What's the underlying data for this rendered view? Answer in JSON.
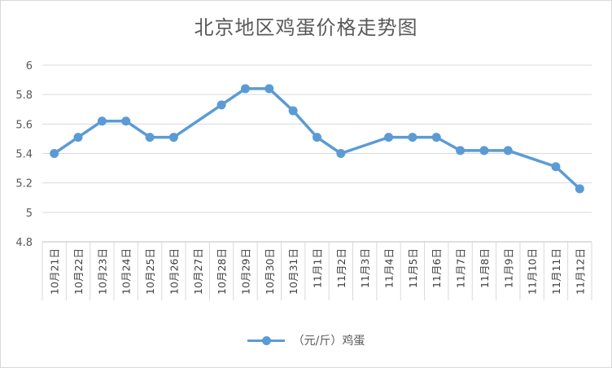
{
  "chart_data": {
    "type": "line",
    "title": "北京地区鸡蛋价格走势图",
    "categories": [
      "10月21日",
      "10月22日",
      "10月23日",
      "10月24日",
      "10月25日",
      "10月26日",
      "10月27日",
      "10月28日",
      "10月29日",
      "10月30日",
      "10月31日",
      "11月1日",
      "11月2日",
      "11月3日",
      "11月4日",
      "11月5日",
      "11月6日",
      "11月7日",
      "11月8日",
      "11月9日",
      "11月10日",
      "11月11日",
      "11月12日"
    ],
    "series": [
      {
        "name": "（元/斤）鸡蛋",
        "color": "#5b9bd5",
        "values": [
          5.4,
          5.51,
          5.62,
          5.62,
          5.51,
          5.51,
          null,
          5.73,
          5.84,
          5.84,
          5.69,
          5.51,
          5.4,
          null,
          5.51,
          5.51,
          5.51,
          5.42,
          5.42,
          5.42,
          null,
          5.31,
          5.16
        ]
      }
    ],
    "ylim": [
      4.8,
      6
    ],
    "yticks": [
      "4.8",
      "5",
      "5.2",
      "5.4",
      "5.6",
      "5.8",
      "6"
    ],
    "grid": true,
    "legend_position": "bottom"
  }
}
